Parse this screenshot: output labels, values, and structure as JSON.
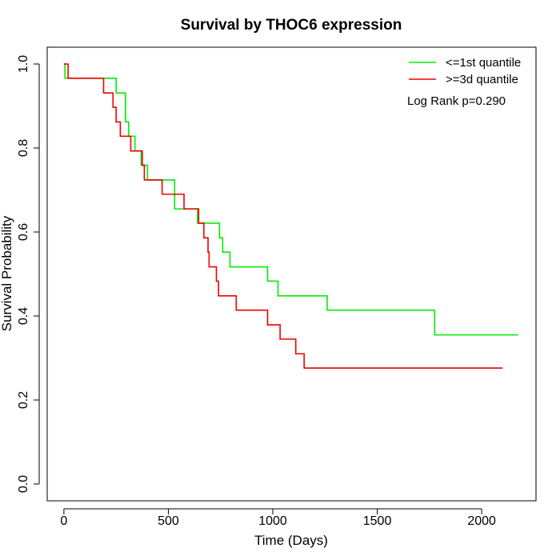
{
  "chart_data": {
    "type": "line",
    "title": "Survival by THOC6 expression",
    "xlabel": "Time (Days)",
    "ylabel": "Survival Probability",
    "xlim": [
      -80,
      2260
    ],
    "ylim": [
      -0.04,
      1.04
    ],
    "xticks": [
      0,
      500,
      1000,
      1500,
      2000
    ],
    "yticks": [
      0.0,
      0.2,
      0.4,
      0.6,
      0.8,
      1.0
    ],
    "xtick_labels": [
      "0",
      "500",
      "1000",
      "1500",
      "2000"
    ],
    "ytick_labels": [
      "0.0",
      "0.2",
      "0.4",
      "0.6",
      "0.8",
      "1.0"
    ],
    "grid": false,
    "legend_position": "top-right",
    "annotation": "Log Rank p=0.290",
    "series": [
      {
        "name": "<=1st quantile",
        "color": "#00ee00",
        "step_x": [
          0,
          5,
          250,
          295,
          310,
          340,
          370,
          400,
          530,
          640,
          745,
          760,
          795,
          975,
          1025,
          1260,
          1775,
          1890,
          2175
        ],
        "step_y": [
          1.0,
          0.966,
          0.931,
          0.862,
          0.828,
          0.793,
          0.759,
          0.724,
          0.655,
          0.621,
          0.586,
          0.552,
          0.517,
          0.483,
          0.448,
          0.414,
          0.355,
          0.355,
          0.355
        ]
      },
      {
        "name": ">=3d quantile",
        "color": "#ee0000",
        "step_x": [
          0,
          20,
          190,
          235,
          250,
          270,
          320,
          375,
          385,
          470,
          575,
          645,
          670,
          690,
          695,
          730,
          740,
          825,
          975,
          1035,
          1110,
          1150,
          2100
        ],
        "step_y": [
          1.0,
          0.966,
          0.931,
          0.897,
          0.862,
          0.828,
          0.793,
          0.759,
          0.724,
          0.69,
          0.655,
          0.621,
          0.586,
          0.552,
          0.517,
          0.483,
          0.448,
          0.414,
          0.379,
          0.345,
          0.31,
          0.276,
          0.276
        ]
      }
    ]
  }
}
